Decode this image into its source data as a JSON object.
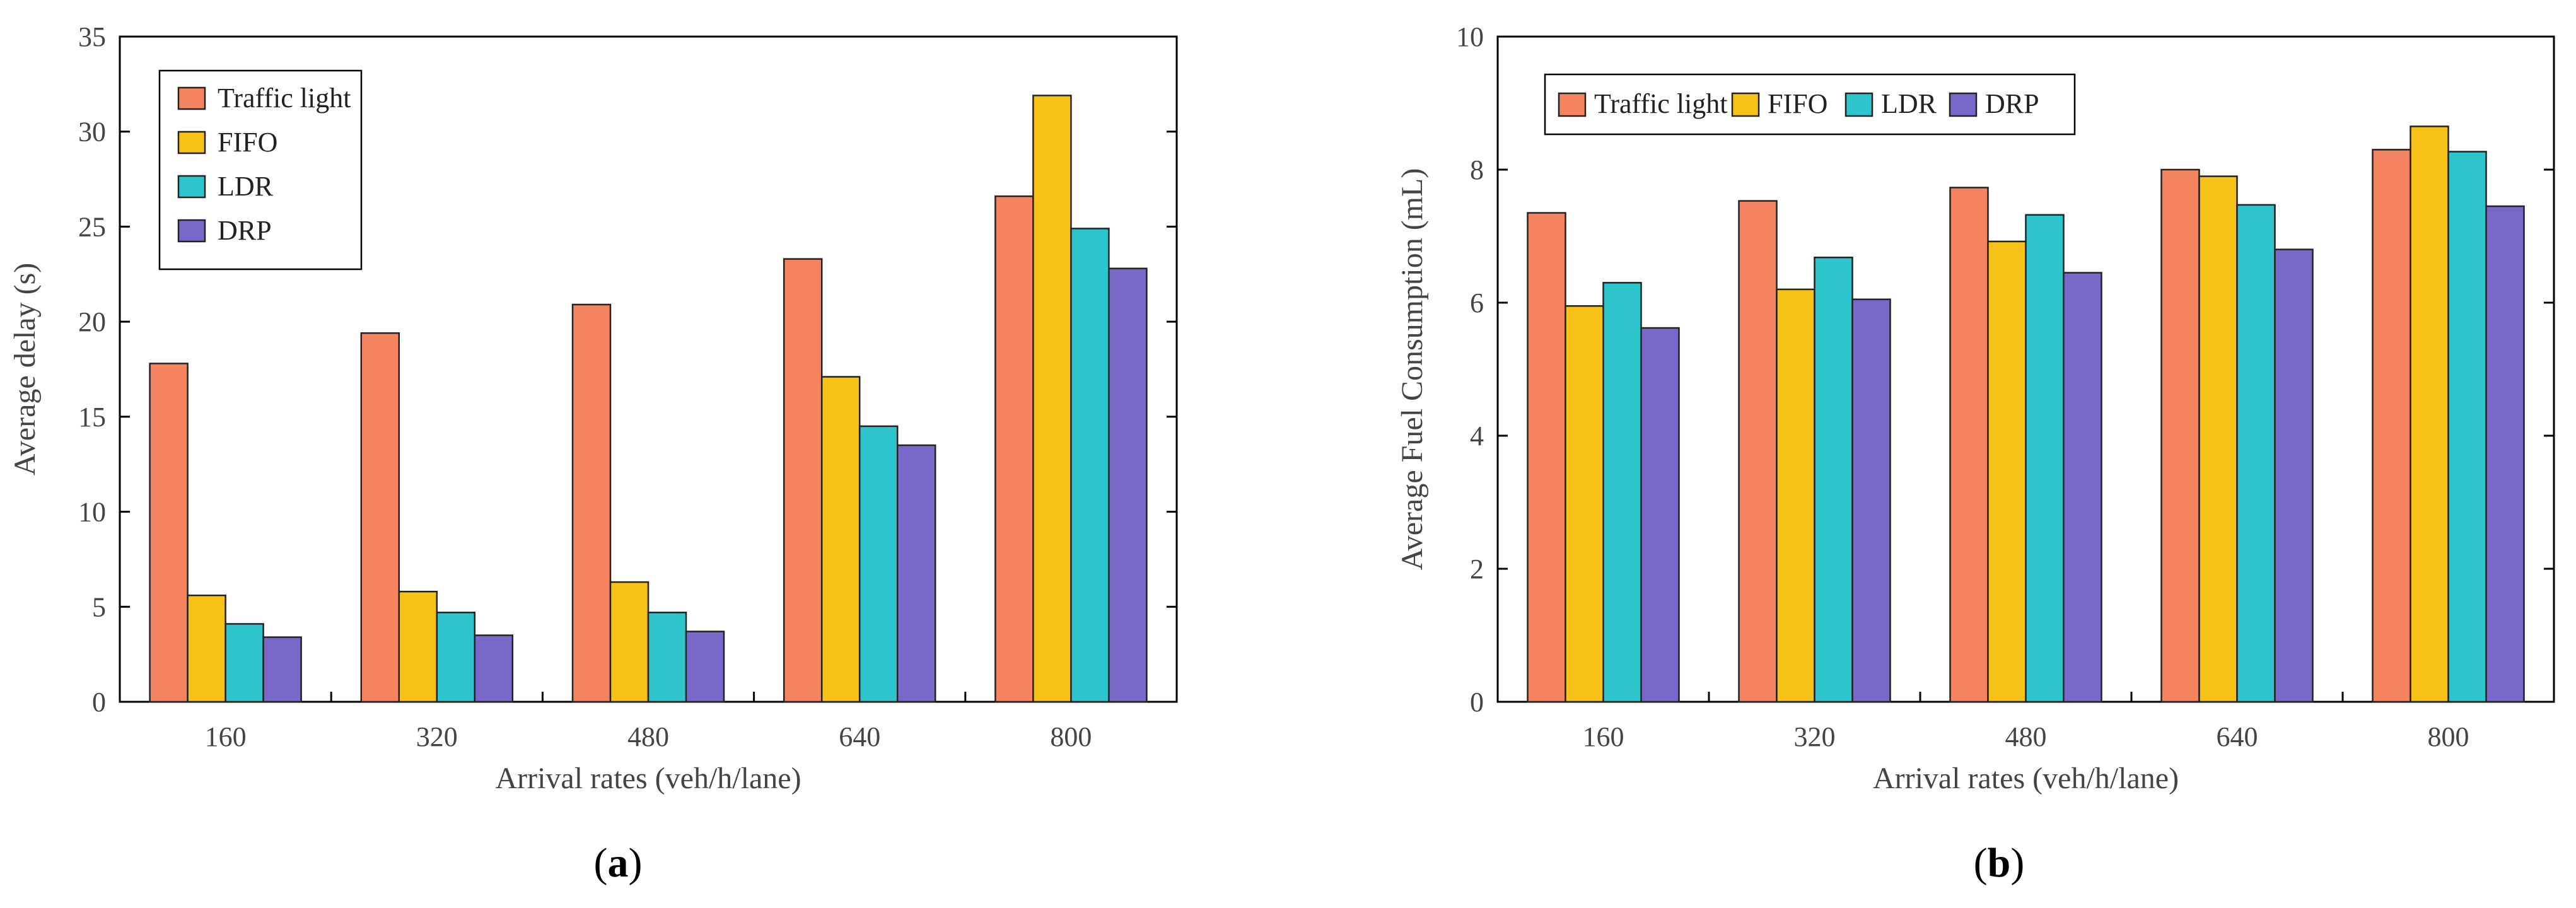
{
  "colors": {
    "Traffic light": "#f4845f",
    "FIFO": "#f7c217",
    "LDR": "#2ec4cc",
    "DRP": "#7a68c8"
  },
  "chart_data": [
    {
      "id": "a",
      "type": "bar",
      "panel_label": "a",
      "categories": [
        "160",
        "320",
        "480",
        "640",
        "800"
      ],
      "series": [
        {
          "name": "Traffic light",
          "values": [
            17.8,
            19.4,
            20.9,
            23.3,
            26.6
          ]
        },
        {
          "name": "FIFO",
          "values": [
            5.6,
            5.8,
            6.3,
            17.1,
            31.9
          ]
        },
        {
          "name": "LDR",
          "values": [
            4.1,
            4.7,
            4.7,
            14.5,
            24.9
          ]
        },
        {
          "name": "DRP",
          "values": [
            3.4,
            3.5,
            3.7,
            13.5,
            22.8
          ]
        }
      ],
      "xlabel": "Arrival rates (veh/h/lane)",
      "ylabel": "Average delay (s)",
      "ylim": [
        0,
        35
      ],
      "yticks": [
        0,
        5,
        10,
        15,
        20,
        25,
        30,
        35
      ],
      "legend": "top-left, vertical"
    },
    {
      "id": "b",
      "type": "bar",
      "panel_label": "b",
      "categories": [
        "160",
        "320",
        "480",
        "640",
        "800"
      ],
      "series": [
        {
          "name": "Traffic light",
          "values": [
            7.35,
            7.53,
            7.73,
            8.0,
            8.3
          ]
        },
        {
          "name": "FIFO",
          "values": [
            5.95,
            6.2,
            6.92,
            7.9,
            8.65
          ]
        },
        {
          "name": "LDR",
          "values": [
            6.3,
            6.68,
            7.32,
            7.47,
            8.27
          ]
        },
        {
          "name": "DRP",
          "values": [
            5.62,
            6.05,
            6.45,
            6.8,
            7.45
          ]
        }
      ],
      "xlabel": "Arrival rates (veh/h/lane)",
      "ylabel": "Average Fuel Consumption (mL)",
      "ylim": [
        0,
        10
      ],
      "yticks": [
        0,
        2,
        4,
        6,
        8,
        10
      ],
      "legend": "top-left, horizontal"
    }
  ]
}
